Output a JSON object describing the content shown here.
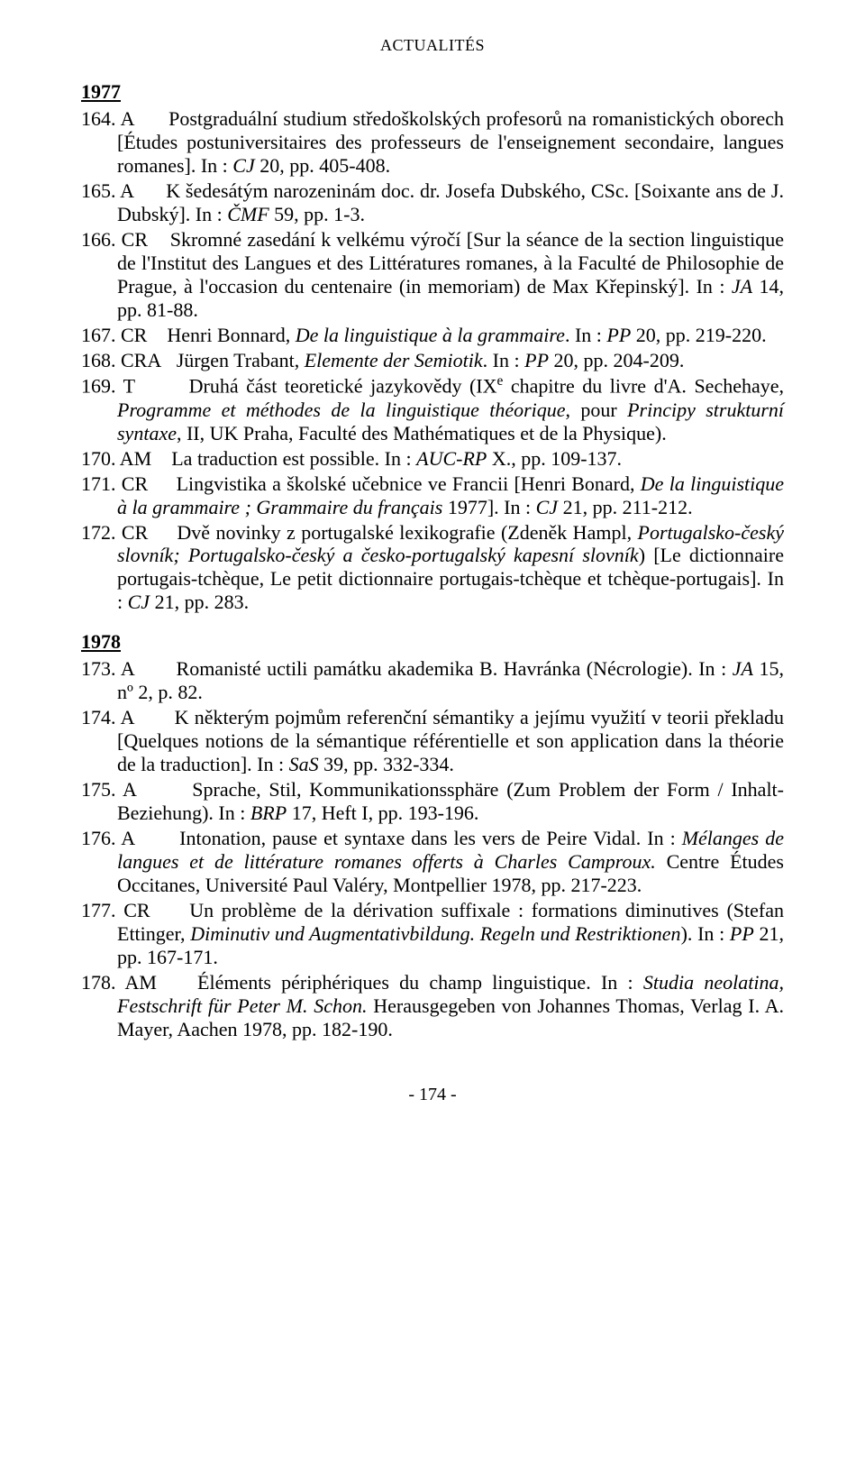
{
  "header": "ACTUALITÉS",
  "footer": "- 174 -",
  "sections": [
    {
      "year": "1977",
      "entries": [
        {
          "html": "164. A&nbsp;&nbsp;&nbsp;&nbsp;&nbsp;&nbsp;Postgraduální studium středoškolských profesorů na romanistických oborech [Études postuniversitaires des professeurs de l'enseignement secondaire, langues romanes]. In : <span class=\"italic\">CJ</span> 20, pp. 405-408."
        },
        {
          "html": "165. A&nbsp;&nbsp;&nbsp;&nbsp;&nbsp;&nbsp;K šedesátým narozeninám doc. dr. Josefa Dubského, CSc. [Soixante ans de J. Dubský]. In : <span class=\"italic\">ČMF</span> 59, pp. 1-3."
        },
        {
          "html": "166. CR&nbsp;&nbsp;&nbsp;&nbsp;Skromné zasedání k velkému výročí [Sur la séance de la section linguistique de l'Institut des Langues et des Littératures romanes, à la Faculté de Philosophie de Prague, à l'occasion du centenaire (in memoriam) de Max Křepinský]. In : <span class=\"italic\">JA</span> 14, pp. 81-88."
        },
        {
          "html": "167. CR&nbsp;&nbsp;&nbsp;&nbsp;Henri Bonnard, <span class=\"italic\">De la linguistique à la grammaire</span>. In : <span class=\"italic\">PP</span> 20, pp. 219-220."
        },
        {
          "html": "168. CRA&nbsp;&nbsp;&nbsp;Jürgen Trabant, <span class=\"italic\">Elemente der Semiotik</span>. In : <span class=\"italic\">PP</span> 20, pp. 204-209."
        },
        {
          "html": "169. T&nbsp;&nbsp;&nbsp;&nbsp;&nbsp;&nbsp;&nbsp;Druhá část teoretické jazykovědy (IX<sup>e</sup> chapitre du livre d'A. Sechehaye, <span class=\"italic\">Programme et méthodes de la linguistique théorique</span>, pour <span class=\"italic\">Principy strukturní syntaxe</span>, II, UK Praha, Faculté des Mathématiques et de la Physique)."
        },
        {
          "html": "170. AM&nbsp;&nbsp;&nbsp;&nbsp;La traduction est possible. In : <span class=\"italic\">AUC-RP</span> X., pp. 109-137."
        },
        {
          "html": "171. CR&nbsp;&nbsp;&nbsp;&nbsp;&nbsp;Lingvistika a školské učebnice ve Francii [Henri Bonard, <span class=\"italic\">De la linguistique à la grammaire ; Grammaire du français</span> 1977]. In : <span class=\"italic\">CJ</span> 21, pp. 211-212."
        },
        {
          "html": "172. CR&nbsp;&nbsp;&nbsp;&nbsp;&nbsp;Dvě novinky z portugalské lexikografie (Zdeněk Hampl, <span class=\"italic\">Portugalsko-český slovník; Portugalsko-český a česko-portugalský kapesní slovník</span>) [Le dictionnaire portugais-tchèque, Le petit dictionnaire portugais-tchèque et tchèque-portugais]. In : <span class=\"italic\">CJ</span> 21, pp. 283."
        }
      ]
    },
    {
      "year": "1978",
      "entries": [
        {
          "html": "173. A&nbsp;&nbsp;&nbsp;&nbsp;&nbsp;&nbsp;&nbsp;Romanisté uctili památku akademika B. Havránka (Nécrologie). In : <span class=\"italic\">JA</span> 15, nº 2, p. 82."
        },
        {
          "html": "174. A&nbsp;&nbsp;&nbsp;&nbsp;&nbsp;&nbsp;&nbsp;K některým pojmům referenční sémantiky a jejímu využití v teorii překladu [Quelques notions de la sémantique référentielle et son application dans la théorie de la traduction]. In : <span class=\"italic\">SaS</span> 39, pp. 332-334."
        },
        {
          "html": "175. A&nbsp;&nbsp;&nbsp;&nbsp;&nbsp;&nbsp;&nbsp;Sprache, Stil, Kommunikationssphäre (Zum Problem der Form / Inhalt-Beziehung). In : <span class=\"italic\">BRP</span> 17, Heft I, pp. 193-196."
        },
        {
          "html": "176. A&nbsp;&nbsp;&nbsp;&nbsp;&nbsp;&nbsp;&nbsp;Intonation, pause et syntaxe dans les vers de Peire Vidal. In : <span class=\"italic\">Mélanges de langues et de littérature romanes offerts à Charles Camproux.</span> Centre Études Occitanes, Université Paul Valéry, Montpellier 1978, pp. 217-223."
        },
        {
          "html": "177. CR&nbsp;&nbsp;&nbsp;&nbsp;&nbsp;Un problème de la dérivation suffixale : formations diminutives (Stefan Ettinger, <span class=\"italic\">Diminutiv und Augmentativbildung. Regeln und Restriktionen</span>). In : <span class=\"italic\">PP</span> 21, pp. 167-171."
        },
        {
          "html": "178. AM&nbsp;&nbsp;&nbsp;&nbsp;Éléments périphériques du champ linguistique. In : <span class=\"italic\">Studia neolatina, Festschrift für Peter M. Schon.</span> Herausgegeben von Johannes Thomas, Verlag I. A. Mayer, Aachen 1978, pp. 182-190."
        }
      ]
    }
  ]
}
